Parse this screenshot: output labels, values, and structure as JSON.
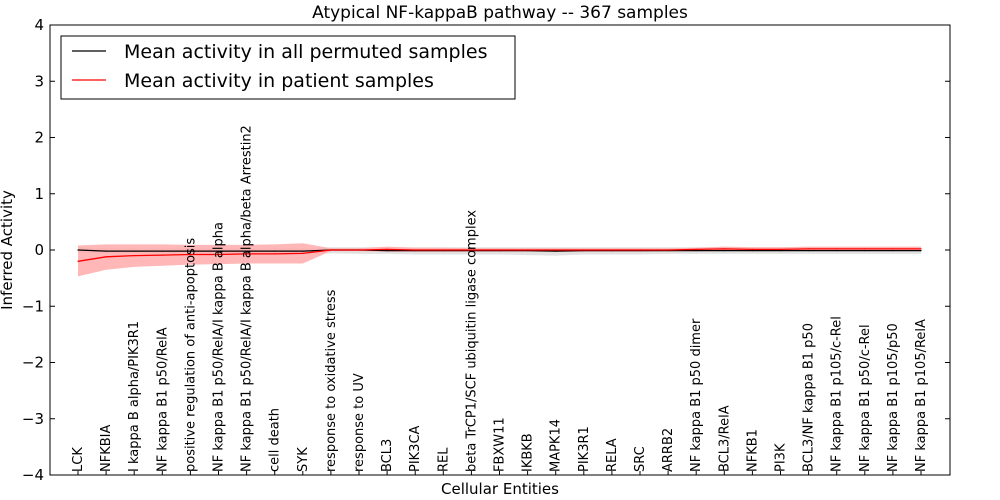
{
  "chart_data": {
    "type": "line",
    "title": "Atypical NF-kappaB pathway -- 367 samples",
    "xlabel": "Cellular Entities",
    "ylabel": "Inferred Activity",
    "ylim": [
      -4,
      4
    ],
    "yticks": [
      -4,
      -3,
      -2,
      -1,
      0,
      1,
      2,
      3,
      4
    ],
    "ytick_labels": [
      "−4",
      "−3",
      "−2",
      "−1",
      "0",
      "1",
      "2",
      "3",
      "4"
    ],
    "legend_position": "top-left",
    "categories": [
      "LCK",
      "NFKBIA",
      "I kappa B alpha/PIK3R1",
      "NF kappa B1 p50/RelA",
      "positive regulation of anti-apoptosis",
      "NF kappa B1 p50/RelA/I kappa B alpha",
      "NF kappa B1 p50/RelA/I kappa B alpha/beta Arrestin2",
      "cell death",
      "SYK",
      "response to oxidative stress",
      "response to UV",
      "BCL3",
      "PIK3CA",
      "REL",
      "beta TrCP1/SCF ubiquitin ligase complex",
      "FBXW11",
      "IKBKB",
      "MAPK14",
      "PIK3R1",
      "RELA",
      "SRC",
      "ARRB2",
      "NF kappa B1 p50 dimer",
      "BCL3/RelA",
      "NFKB1",
      "PI3K",
      "BCL3/NF kappa B1 p50",
      "NF kappa B1 p105/c-Rel",
      "NF kappa B1 p50/c-Rel",
      "NF kappa B1 p105/p50",
      "NF kappa B1 p105/RelA"
    ],
    "series": [
      {
        "name": "Mean activity in all permuted samples",
        "color": "#000000",
        "values": [
          0.0,
          -0.02,
          -0.02,
          -0.02,
          -0.02,
          -0.02,
          -0.02,
          -0.02,
          -0.02,
          0.0,
          0.0,
          -0.01,
          -0.01,
          -0.01,
          -0.01,
          -0.01,
          -0.01,
          -0.02,
          -0.01,
          -0.01,
          -0.01,
          -0.01,
          -0.01,
          -0.01,
          -0.01,
          -0.01,
          -0.01,
          -0.01,
          -0.01,
          -0.01,
          -0.01
        ],
        "band_upper": [
          0.05,
          0.03,
          0.03,
          0.03,
          0.03,
          0.03,
          0.03,
          0.03,
          0.03,
          0.05,
          0.05,
          0.05,
          0.05,
          0.05,
          0.05,
          0.05,
          0.05,
          0.05,
          0.05,
          0.05,
          0.05,
          0.05,
          0.05,
          0.05,
          0.05,
          0.05,
          0.05,
          0.05,
          0.05,
          0.05,
          0.05
        ],
        "band_lower": [
          -0.05,
          -0.06,
          -0.06,
          -0.06,
          -0.06,
          -0.06,
          -0.06,
          -0.06,
          -0.06,
          -0.06,
          -0.07,
          -0.07,
          -0.08,
          -0.08,
          -0.08,
          -0.08,
          -0.09,
          -0.1,
          -0.08,
          -0.08,
          -0.08,
          -0.07,
          -0.07,
          -0.07,
          -0.07,
          -0.07,
          -0.07,
          -0.07,
          -0.07,
          -0.07,
          -0.07
        ],
        "band_color": "#d6d6d6"
      },
      {
        "name": "Mean activity in patient samples",
        "color": "#ff0000",
        "values": [
          -0.2,
          -0.12,
          -0.1,
          -0.09,
          -0.08,
          -0.08,
          -0.07,
          -0.07,
          -0.06,
          0.0,
          0.0,
          0.01,
          0.0,
          0.0,
          0.0,
          0.0,
          0.0,
          0.0,
          0.0,
          0.0,
          0.0,
          0.0,
          0.01,
          0.02,
          0.01,
          0.01,
          0.02,
          0.02,
          0.02,
          0.02,
          0.02
        ],
        "band_upper": [
          0.08,
          0.1,
          0.1,
          0.1,
          0.09,
          0.09,
          0.09,
          0.1,
          0.12,
          0.03,
          0.03,
          0.06,
          0.04,
          0.04,
          0.03,
          0.03,
          0.03,
          0.03,
          0.03,
          0.03,
          0.03,
          0.03,
          0.04,
          0.06,
          0.05,
          0.05,
          0.06,
          0.06,
          0.06,
          0.06,
          0.06
        ],
        "band_lower": [
          -0.47,
          -0.35,
          -0.3,
          -0.28,
          -0.26,
          -0.25,
          -0.24,
          -0.24,
          -0.24,
          -0.02,
          -0.02,
          -0.03,
          -0.03,
          -0.03,
          -0.03,
          -0.03,
          -0.03,
          -0.03,
          -0.03,
          -0.03,
          -0.03,
          -0.02,
          -0.02,
          -0.01,
          -0.02,
          -0.02,
          -0.01,
          -0.01,
          -0.01,
          -0.01,
          -0.01
        ],
        "band_color": "#ffaaaa"
      }
    ]
  }
}
